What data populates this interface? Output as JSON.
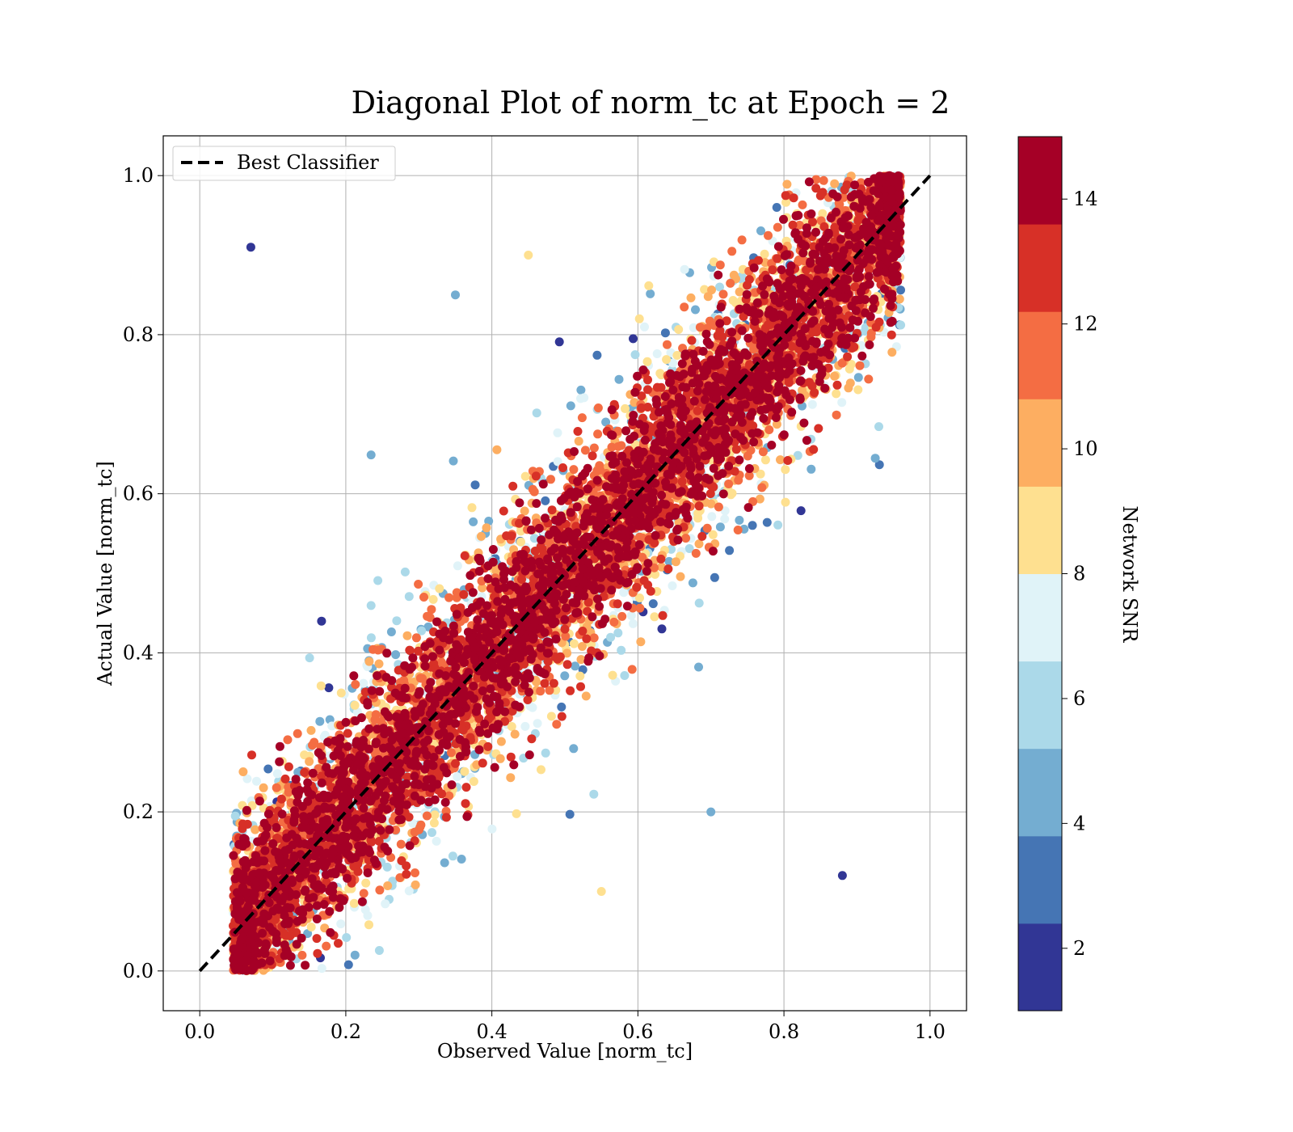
{
  "chart_data": {
    "type": "scatter",
    "title": "Diagonal Plot of norm_tc at Epoch = 2",
    "xlabel": "Observed Value [norm_tc]",
    "ylabel": "Actual Value [norm_tc]",
    "xlim": [
      -0.05,
      1.05
    ],
    "ylim": [
      -0.05,
      1.05
    ],
    "xticks": [
      "0.0",
      "0.2",
      "0.4",
      "0.6",
      "0.8",
      "1.0"
    ],
    "yticks": [
      "0.0",
      "0.2",
      "0.4",
      "0.6",
      "0.8",
      "1.0"
    ],
    "grid": true,
    "legend": {
      "position": "top-left",
      "entries": [
        "Best Classifier"
      ]
    },
    "reference_line": {
      "name": "Best Classifier",
      "x": [
        0,
        1
      ],
      "y": [
        0,
        1
      ],
      "style": "dashed",
      "color": "#000000"
    },
    "colorbar": {
      "label": "Network SNR",
      "range": [
        1,
        15
      ],
      "ticks": [
        "2",
        "4",
        "6",
        "8",
        "10",
        "12",
        "14"
      ],
      "colormap": "RdYlBu_r",
      "colors": [
        "#313695",
        "#4575b4",
        "#74add1",
        "#abd9e9",
        "#e0f3f8",
        "#fee090",
        "#fdae61",
        "#f46d43",
        "#d73027",
        "#a50026"
      ]
    },
    "series": {
      "description_values": "norm_tc observed vs actual, colored by Network SNR",
      "points": [
        {
          "x": 0.1,
          "y": 0.05,
          "snr": 15
        },
        {
          "x": 0.2,
          "y": 0.2,
          "snr": 15
        },
        {
          "x": 0.4,
          "y": 0.4,
          "snr": 15
        },
        {
          "x": 0.6,
          "y": 0.6,
          "snr": 15
        },
        {
          "x": 0.8,
          "y": 0.8,
          "snr": 15
        },
        {
          "x": 0.92,
          "y": 0.95,
          "snr": 15
        },
        {
          "x": 0.55,
          "y": 0.1,
          "snr": 9
        },
        {
          "x": 0.7,
          "y": 0.2,
          "snr": 5
        },
        {
          "x": 0.35,
          "y": 0.85,
          "snr": 5
        },
        {
          "x": 0.45,
          "y": 0.9,
          "snr": 9
        },
        {
          "x": 0.07,
          "y": 0.91,
          "snr": 1.5
        },
        {
          "x": 0.88,
          "y": 0.12,
          "snr": 1.5
        }
      ]
    }
  }
}
